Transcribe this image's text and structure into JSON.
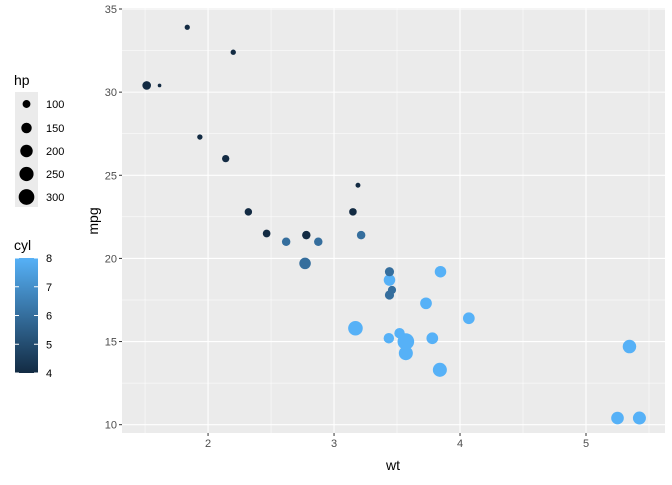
{
  "chart_data": {
    "type": "scatter",
    "xlabel": "wt",
    "ylabel": "mpg",
    "xlim": [
      1.317,
      5.627
    ],
    "ylim": [
      9.5,
      35.06
    ],
    "x_ticks": [
      2,
      3,
      4,
      5
    ],
    "y_ticks": [
      10,
      15,
      20,
      25,
      30,
      35
    ],
    "grid": true,
    "legend_placement": "left",
    "size_legend": {
      "title": "hp",
      "labels": [
        "100",
        "150",
        "200",
        "250",
        "300"
      ],
      "values": [
        100,
        150,
        200,
        250,
        300
      ]
    },
    "color_legend": {
      "title": "cyl",
      "labels": [
        "8",
        "7",
        "6",
        "5",
        "4"
      ],
      "values": [
        8,
        7,
        6,
        5,
        4
      ],
      "low_color": "#132B43",
      "high_color": "#56B1F7"
    },
    "panel_color": "#EBEBEB",
    "points": [
      {
        "wt": 2.62,
        "mpg": 21.0,
        "cyl": 6,
        "hp": 110
      },
      {
        "wt": 2.875,
        "mpg": 21.0,
        "cyl": 6,
        "hp": 110
      },
      {
        "wt": 2.32,
        "mpg": 22.8,
        "cyl": 4,
        "hp": 93
      },
      {
        "wt": 3.215,
        "mpg": 21.4,
        "cyl": 6,
        "hp": 110
      },
      {
        "wt": 3.44,
        "mpg": 18.7,
        "cyl": 8,
        "hp": 175
      },
      {
        "wt": 3.46,
        "mpg": 18.1,
        "cyl": 6,
        "hp": 105
      },
      {
        "wt": 3.57,
        "mpg": 14.3,
        "cyl": 8,
        "hp": 245
      },
      {
        "wt": 3.19,
        "mpg": 24.4,
        "cyl": 4,
        "hp": 62
      },
      {
        "wt": 3.15,
        "mpg": 22.8,
        "cyl": 4,
        "hp": 95
      },
      {
        "wt": 3.44,
        "mpg": 19.2,
        "cyl": 6,
        "hp": 123
      },
      {
        "wt": 3.44,
        "mpg": 17.8,
        "cyl": 6,
        "hp": 123
      },
      {
        "wt": 4.07,
        "mpg": 16.4,
        "cyl": 8,
        "hp": 180
      },
      {
        "wt": 3.73,
        "mpg": 17.3,
        "cyl": 8,
        "hp": 180
      },
      {
        "wt": 3.78,
        "mpg": 15.2,
        "cyl": 8,
        "hp": 180
      },
      {
        "wt": 5.25,
        "mpg": 10.4,
        "cyl": 8,
        "hp": 205
      },
      {
        "wt": 5.424,
        "mpg": 10.4,
        "cyl": 8,
        "hp": 215
      },
      {
        "wt": 5.345,
        "mpg": 14.7,
        "cyl": 8,
        "hp": 230
      },
      {
        "wt": 2.2,
        "mpg": 32.4,
        "cyl": 4,
        "hp": 66
      },
      {
        "wt": 1.615,
        "mpg": 30.4,
        "cyl": 4,
        "hp": 52
      },
      {
        "wt": 1.835,
        "mpg": 33.9,
        "cyl": 4,
        "hp": 65
      },
      {
        "wt": 2.465,
        "mpg": 21.5,
        "cyl": 4,
        "hp": 97
      },
      {
        "wt": 3.52,
        "mpg": 15.5,
        "cyl": 8,
        "hp": 150
      },
      {
        "wt": 3.435,
        "mpg": 15.2,
        "cyl": 8,
        "hp": 150
      },
      {
        "wt": 3.84,
        "mpg": 13.3,
        "cyl": 8,
        "hp": 245
      },
      {
        "wt": 3.845,
        "mpg": 19.2,
        "cyl": 8,
        "hp": 175
      },
      {
        "wt": 1.935,
        "mpg": 27.3,
        "cyl": 4,
        "hp": 66
      },
      {
        "wt": 2.14,
        "mpg": 26.0,
        "cyl": 4,
        "hp": 91
      },
      {
        "wt": 1.513,
        "mpg": 30.4,
        "cyl": 4,
        "hp": 113
      },
      {
        "wt": 3.17,
        "mpg": 15.8,
        "cyl": 8,
        "hp": 264
      },
      {
        "wt": 2.77,
        "mpg": 19.7,
        "cyl": 6,
        "hp": 175
      },
      {
        "wt": 3.57,
        "mpg": 15.0,
        "cyl": 8,
        "hp": 335
      },
      {
        "wt": 2.78,
        "mpg": 21.4,
        "cyl": 4,
        "hp": 109
      }
    ]
  }
}
